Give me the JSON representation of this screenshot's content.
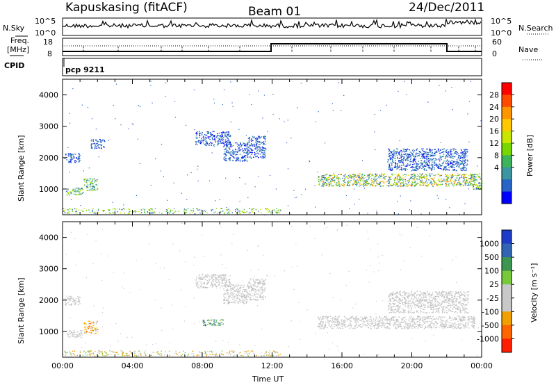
{
  "header": {
    "station": "Kapuskasing (fitACF)",
    "beam": "Beam 01",
    "date": "24/Dec/2011"
  },
  "status_panels": {
    "nsky_label": "N.Sky",
    "freq_label_1": "Freq.",
    "freq_label_2": "[MHz]",
    "cpid_label": "CPID",
    "nsearch_label": "N.Search",
    "nave_label": "Nave",
    "noise_ticks_left": [
      "10^5",
      "10^0"
    ],
    "noise_ticks_right": [
      "10^5",
      "10^0"
    ],
    "freq_ticks": [
      "18",
      "8"
    ],
    "nave_ticks": [
      "60",
      "0"
    ],
    "cpid_text": "pcp 9211"
  },
  "chart_data": [
    {
      "type": "heatmap",
      "name": "power",
      "xlabel": "",
      "ylabel": "Slant Range [km]",
      "x_ticks": [
        "",
        "",
        "",
        "",
        "",
        "",
        ""
      ],
      "y_ticks": [
        "4000",
        "3000",
        "2000",
        "1000"
      ],
      "xlim_hours": [
        0,
        24
      ],
      "ylim_km": [
        180,
        4500
      ],
      "colorbar": {
        "label": "Power [dB]",
        "ticks": [
          "28",
          "24",
          "20",
          "16",
          "12",
          "8",
          "4"
        ],
        "colors": [
          "#ff0000",
          "#ff4a00",
          "#ff9600",
          "#ffc800",
          "#c8e600",
          "#78d700",
          "#3cb45a",
          "#3c96a0",
          "#2864c8",
          "#0000ff"
        ]
      },
      "regions": [
        {
          "t0": 0.2,
          "t1": 1.2,
          "r0": 820,
          "r1": 1050,
          "level": "mid"
        },
        {
          "t0": 1.2,
          "t1": 2.0,
          "r0": 950,
          "r1": 1350,
          "level": "mid"
        },
        {
          "t0": 0.1,
          "t1": 1.0,
          "r0": 1850,
          "r1": 2150,
          "level": "low"
        },
        {
          "t0": 1.6,
          "t1": 2.4,
          "r0": 2300,
          "r1": 2600,
          "level": "low"
        },
        {
          "t0": 7.6,
          "t1": 9.6,
          "r0": 2400,
          "r1": 2850,
          "level": "low"
        },
        {
          "t0": 9.2,
          "t1": 10.6,
          "r0": 1900,
          "r1": 2500,
          "level": "low"
        },
        {
          "t0": 10.6,
          "t1": 11.6,
          "r0": 2000,
          "r1": 2700,
          "level": "low"
        },
        {
          "t0": 14.6,
          "t1": 23.6,
          "r0": 1100,
          "r1": 1500,
          "level": "high"
        },
        {
          "t0": 18.6,
          "t1": 23.2,
          "r0": 1600,
          "r1": 2300,
          "level": "low"
        },
        {
          "t0": 23.3,
          "t1": 24.0,
          "r0": 1000,
          "r1": 1500,
          "level": "mid"
        }
      ]
    },
    {
      "type": "heatmap",
      "name": "velocity",
      "xlabel": "Time UT",
      "ylabel": "Slant Range [km]",
      "x_ticks": [
        "00:00",
        "04:00",
        "08:00",
        "12:00",
        "16:00",
        "20:00",
        "00:00"
      ],
      "y_ticks": [
        "4000",
        "3000",
        "2000",
        "1000"
      ],
      "xlim_hours": [
        0,
        24
      ],
      "ylim_km": [
        180,
        4500
      ],
      "colorbar": {
        "label": "Velocity [m s⁻¹]",
        "ticks": [
          "1000",
          "500",
          "100",
          "25",
          "-25",
          "-100",
          "-500",
          "-1000"
        ],
        "colors": [
          "#1e3cc8",
          "#3264b4",
          "#3c9650",
          "#78c83c",
          "#c8c8c8",
          "#c8c8c8",
          "#f0a000",
          "#ff6400",
          "#ff1e00"
        ]
      },
      "regions": [
        {
          "t0": 0.2,
          "t1": 1.2,
          "r0": 820,
          "r1": 1050,
          "level": "grey"
        },
        {
          "t0": 1.2,
          "t1": 2.0,
          "r0": 950,
          "r1": 1350,
          "level": "orange"
        },
        {
          "t0": 0.1,
          "t1": 1.0,
          "r0": 1850,
          "r1": 2150,
          "level": "grey"
        },
        {
          "t0": 7.6,
          "t1": 9.6,
          "r0": 2400,
          "r1": 2850,
          "level": "grey"
        },
        {
          "t0": 9.2,
          "t1": 10.6,
          "r0": 1900,
          "r1": 2500,
          "level": "grey"
        },
        {
          "t0": 10.6,
          "t1": 11.6,
          "r0": 2000,
          "r1": 2700,
          "level": "grey"
        },
        {
          "t0": 14.6,
          "t1": 23.6,
          "r0": 1100,
          "r1": 1500,
          "level": "grey"
        },
        {
          "t0": 18.6,
          "t1": 23.2,
          "r0": 1600,
          "r1": 2300,
          "level": "grey"
        },
        {
          "t0": 8.0,
          "t1": 9.2,
          "r0": 1200,
          "r1": 1400,
          "level": "green"
        }
      ]
    }
  ]
}
